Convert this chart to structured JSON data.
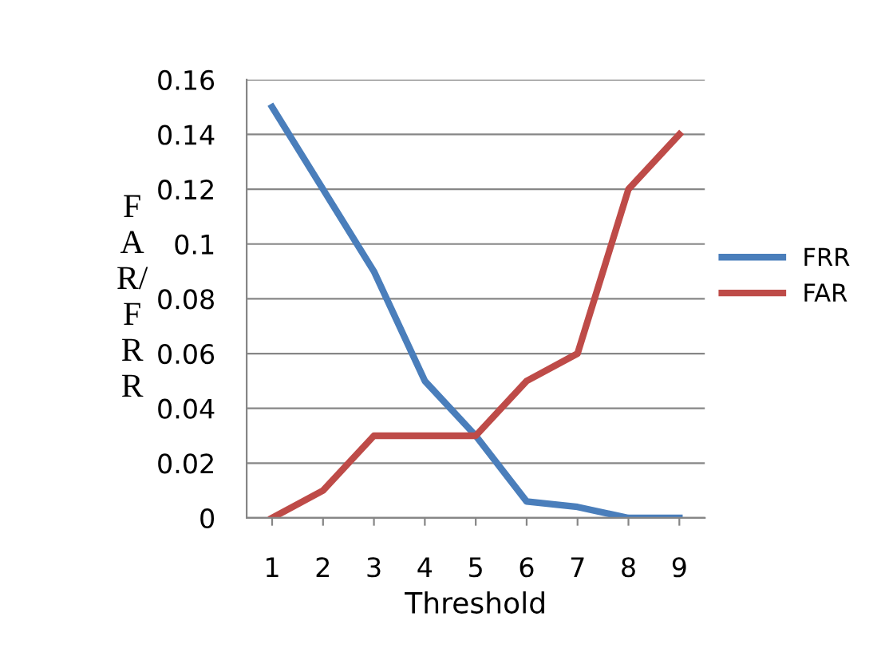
{
  "chart_data": {
    "type": "line",
    "xlabel": "Threshold",
    "ylabel": "FAR/FRR",
    "categories": [
      "1",
      "2",
      "3",
      "4",
      "5",
      "6",
      "7",
      "8",
      "9"
    ],
    "series": [
      {
        "name": "FRR",
        "color": "#4a7ebb",
        "values": [
          0.15,
          0.12,
          0.09,
          0.05,
          0.03,
          0.006,
          0.004,
          0,
          0
        ]
      },
      {
        "name": "FAR",
        "color": "#be4b48",
        "values": [
          0,
          0.01,
          0.03,
          0.03,
          0.03,
          0.05,
          0.06,
          0.12,
          0.14
        ]
      }
    ],
    "ylim": [
      0,
      0.16
    ],
    "yticks": [
      0,
      0.02,
      0.04,
      0.06,
      0.08,
      0.1,
      0.12,
      0.14,
      0.16
    ],
    "grid": "y",
    "legend": "right",
    "marker": "none",
    "line_style": "solid"
  }
}
